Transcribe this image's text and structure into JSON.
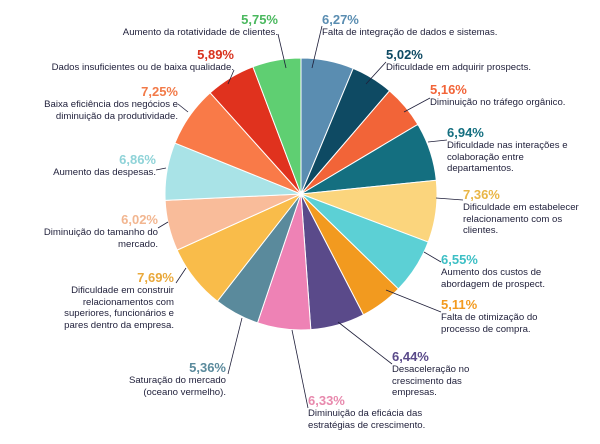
{
  "chart_data": {
    "type": "pie",
    "title": "",
    "slices": [
      {
        "value": 6.27,
        "label_pct": "6,27%",
        "label": "Falta de integração de dados e sistemas.",
        "color": "#5a8db1",
        "pct_color": "#5a8db1"
      },
      {
        "value": 5.02,
        "label_pct": "5,02%",
        "label": "Dificuldade em adquirir prospects.",
        "color": "#0e4a63",
        "pct_color": "#0e4a63"
      },
      {
        "value": 5.16,
        "label_pct": "5,16%",
        "label": "Diminuição no tráfego orgânico.",
        "color": "#f26438",
        "pct_color": "#f26438"
      },
      {
        "value": 6.94,
        "label_pct": "6,94%",
        "label": "Dificuldade nas interações e colaboração entre departamentos.",
        "color": "#146f80",
        "pct_color": "#146f80"
      },
      {
        "value": 7.36,
        "label_pct": "7,36%",
        "label": "Dificuldade em estabelecer relacionamento com os clientes.",
        "color": "#fbd57d",
        "pct_color": "#e9b646"
      },
      {
        "value": 6.55,
        "label_pct": "6,55%",
        "label": "Aumento dos custos de abordagem de prospect.",
        "color": "#5cd0d5",
        "pct_color": "#3cbfc5"
      },
      {
        "value": 5.11,
        "label_pct": "5,11%",
        "label": "Falta de otimização do processo de compra.",
        "color": "#f29a1f",
        "pct_color": "#f29a1f"
      },
      {
        "value": 6.44,
        "label_pct": "6,44%",
        "label": "Desaceleração no crescimento das empresas.",
        "color": "#5a4a8a",
        "pct_color": "#5a4a8a"
      },
      {
        "value": 6.33,
        "label_pct": "6,33%",
        "label": "Diminuição da eficácia das estratégias de crescimento.",
        "color": "#ee82b5",
        "pct_color": "#e889ad"
      },
      {
        "value": 5.36,
        "label_pct": "5,36%",
        "label": "Saturação do mercado (oceano vermelho).",
        "color": "#5a8a9c",
        "pct_color": "#5a8a9c"
      },
      {
        "value": 7.69,
        "label_pct": "7,69%",
        "label": "Dificuldade em construir relacionamentos com superiores, funcionários e pares dentro da empresa.",
        "color": "#f9bc4a",
        "pct_color": "#e9a83a"
      },
      {
        "value": 6.02,
        "label_pct": "6,02%",
        "label": "Diminuição do tamanho do mercado.",
        "color": "#f9bc9a",
        "pct_color": "#f2b690"
      },
      {
        "value": 6.86,
        "label_pct": "6,86%",
        "label": "Aumento das despesas.",
        "color": "#a9e3e7",
        "pct_color": "#8fd3d8"
      },
      {
        "value": 7.25,
        "label_pct": "7,25%",
        "label": "Baixa eficiência dos negócios e diminuição da produtividade.",
        "color": "#f97a48",
        "pct_color": "#f27a48"
      },
      {
        "value": 5.89,
        "label_pct": "5,89%",
        "label": "Dados insuficientes ou de baixa qualidade.",
        "color": "#e0321e",
        "pct_color": "#d8321e"
      },
      {
        "value": 5.75,
        "label_pct": "5,75%",
        "label": "Aumento da rotatividade de clientes.",
        "color": "#5fcf72",
        "pct_color": "#4ab85e"
      }
    ]
  }
}
